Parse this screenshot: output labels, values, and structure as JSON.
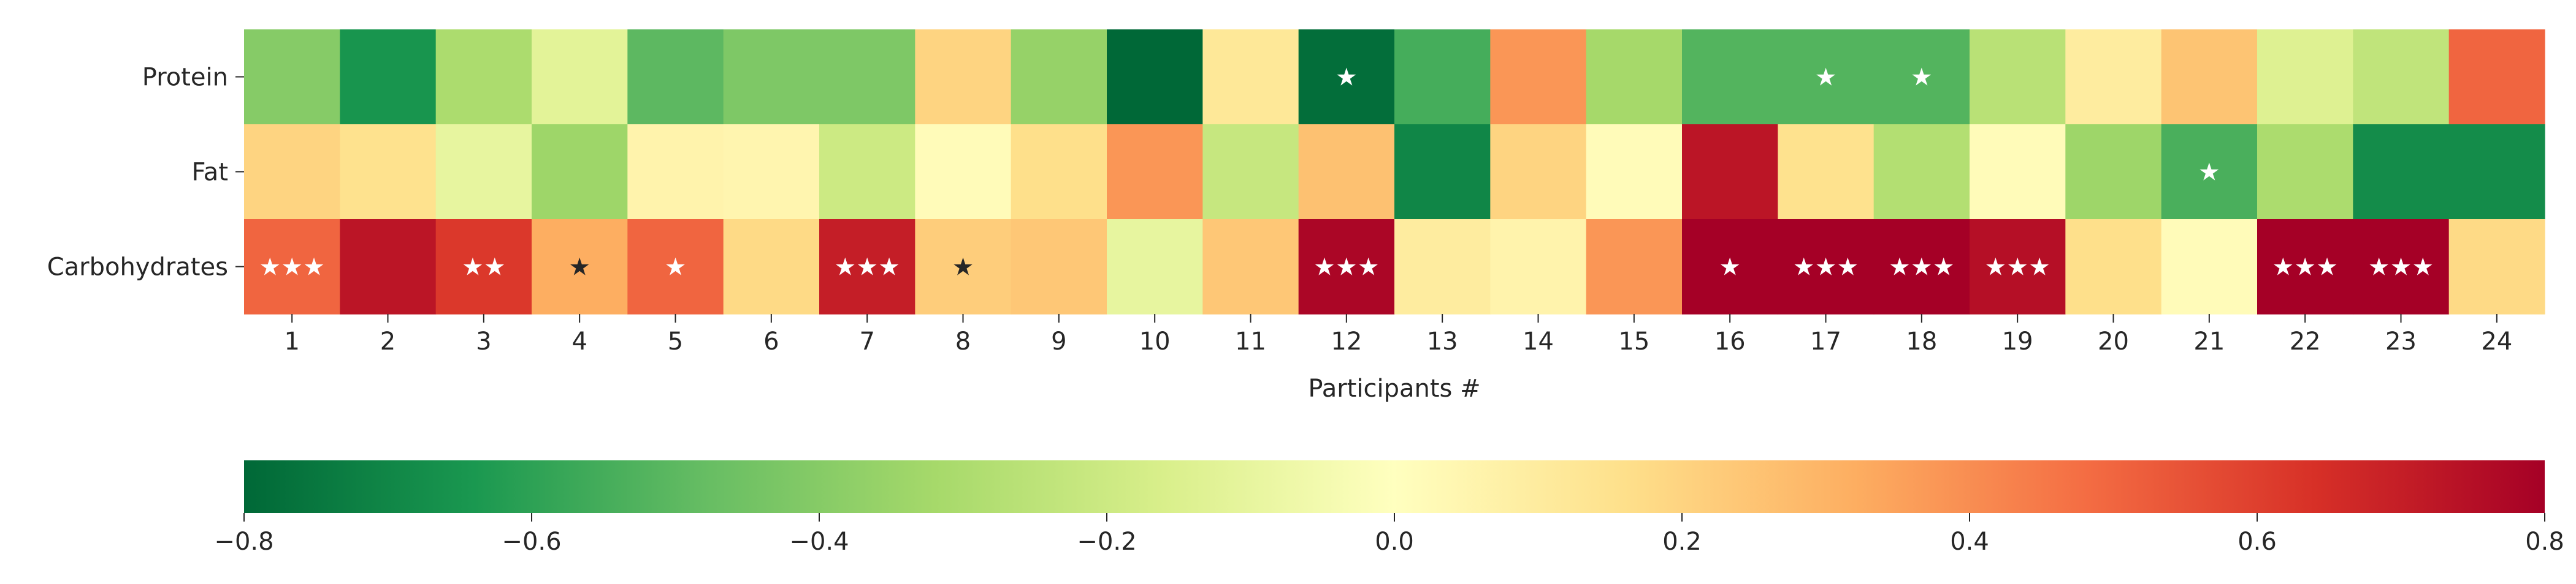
{
  "chart_data": {
    "type": "heatmap",
    "title": "",
    "xlabel": "Participants #",
    "ylabel": "",
    "x_categories": [
      "1",
      "2",
      "3",
      "4",
      "5",
      "6",
      "7",
      "8",
      "9",
      "10",
      "11",
      "12",
      "13",
      "14",
      "15",
      "16",
      "17",
      "18",
      "19",
      "20",
      "21",
      "22",
      "23",
      "24"
    ],
    "y_categories": [
      "Protein",
      "Fat",
      "Carbohydrates"
    ],
    "values": [
      [
        -0.4,
        -0.65,
        -0.3,
        -0.12,
        -0.5,
        -0.42,
        -0.42,
        0.2,
        -0.36,
        -0.8,
        0.12,
        -0.78,
        -0.55,
        0.38,
        -0.32,
        -0.52,
        -0.52,
        -0.52,
        -0.26,
        0.1,
        0.25,
        -0.14,
        -0.24,
        0.5
      ],
      [
        0.2,
        0.15,
        -0.1,
        -0.34,
        0.06,
        0.05,
        -0.2,
        0.02,
        0.16,
        0.38,
        -0.22,
        0.26,
        -0.7,
        0.2,
        0.02,
        0.73,
        0.15,
        -0.28,
        0.02,
        -0.34,
        -0.54,
        -0.3,
        -0.68,
        -0.68
      ],
      [
        0.5,
        0.73,
        0.62,
        0.32,
        0.5,
        0.18,
        0.7,
        0.22,
        0.24,
        -0.1,
        0.24,
        0.78,
        0.1,
        0.06,
        0.38,
        0.8,
        0.8,
        0.8,
        0.75,
        0.16,
        0.02,
        0.8,
        0.8,
        0.18
      ]
    ],
    "annotations": [
      [
        "",
        "",
        "",
        "",
        "",
        "",
        "",
        "",
        "",
        "",
        "",
        "★",
        "",
        "",
        "",
        "",
        "★",
        "★",
        "",
        "",
        "",
        "",
        "",
        ""
      ],
      [
        "",
        "",
        "",
        "",
        "",
        "",
        "",
        "",
        "",
        "",
        "",
        "",
        "",
        "",
        "",
        "",
        "",
        "",
        "",
        "",
        "★",
        "",
        "",
        ""
      ],
      [
        "★★★",
        "",
        "★★",
        "★",
        "★",
        "",
        "★★★",
        "★",
        "",
        "",
        "",
        "★★★",
        "",
        "",
        "",
        "★",
        "★★★",
        "★★★",
        "★★★",
        "",
        "",
        "★★★",
        "★★★",
        ""
      ]
    ],
    "colormap": "RdYlGn_r",
    "colormap_stops": [
      "#006837",
      "#1a9850",
      "#66bd63",
      "#a6d96a",
      "#d9ef8b",
      "#ffffbf",
      "#fee08b",
      "#fdae61",
      "#f46d43",
      "#d73027",
      "#a50026"
    ],
    "vmin": -0.8,
    "vmax": 0.8,
    "colorbar": {
      "orientation": "horizontal",
      "placement": "bottom",
      "ticks": [
        "−0.8",
        "−0.6",
        "−0.4",
        "−0.2",
        "0.0",
        "0.2",
        "0.4",
        "0.6",
        "0.8"
      ],
      "tick_values": [
        -0.8,
        -0.6,
        -0.4,
        -0.2,
        0.0,
        0.2,
        0.4,
        0.6,
        0.8
      ]
    },
    "grid": false,
    "legend": "none"
  }
}
